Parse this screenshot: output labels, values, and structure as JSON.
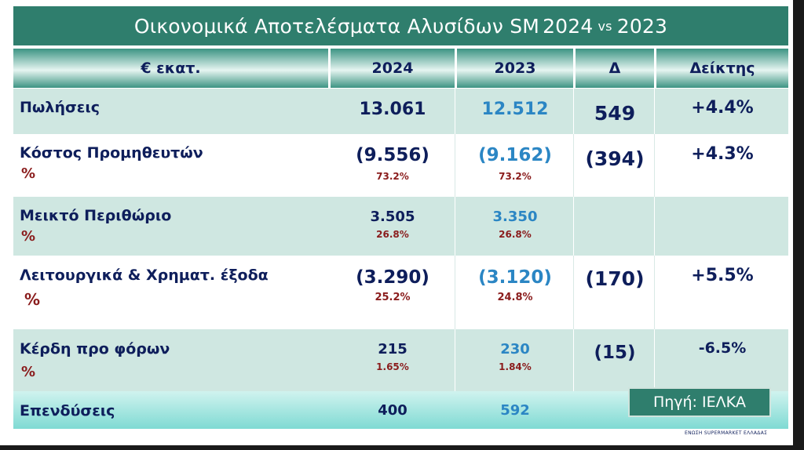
{
  "title": {
    "main": "Οικονομικά Αποτελέσματα Αλυσίδων SM",
    "year_a": "2024",
    "vs": "vs",
    "year_b": "2023"
  },
  "header": {
    "unit": "€ εκατ.",
    "col_2024": "2024",
    "col_2023": "2023",
    "col_delta": "Δ",
    "col_index": "Δείκτης"
  },
  "rows": [
    {
      "label": "Πωλήσεις",
      "pct_sign": "",
      "v2024": "13.061",
      "p2024": "",
      "v2023": "12.512",
      "p2023": "",
      "delta": "549",
      "index": "+4.4%"
    },
    {
      "label": "Κόστος Προμηθευτών",
      "pct_sign": "%",
      "v2024": "(9.556)",
      "p2024": "73.2%",
      "v2023": "(9.162)",
      "p2023": "73.2%",
      "delta": "(394)",
      "index": "+4.3%"
    },
    {
      "label": "Μεικτό Περιθώριο",
      "pct_sign": "%",
      "v2024": "3.505",
      "p2024": "26.8%",
      "v2023": "3.350",
      "p2023": "26.8%",
      "delta": "",
      "index": ""
    },
    {
      "label": "Λειτουργικά & Χρηματ. έξοδα",
      "pct_sign": "%",
      "v2024": "(3.290)",
      "p2024": "25.2%",
      "v2023": "(3.120)",
      "p2023": "24.8%",
      "delta": "(170)",
      "index": "+5.5%"
    },
    {
      "label": "Κέρδη προ φόρων",
      "pct_sign": "%",
      "v2024": "215",
      "p2024": "1.65%",
      "v2023": "230",
      "p2023": "1.84%",
      "delta": "(15)",
      "index": "-6.5%"
    },
    {
      "label": "Επενδύσεις",
      "pct_sign": "",
      "v2024": "400",
      "p2024": "",
      "v2023": "592",
      "p2023": "",
      "delta": "",
      "index": ""
    }
  ],
  "source_label": "Πηγή: ΙΕΛΚΑ",
  "footer_text": "ΕΝΩΣΗ SUPERMARKET ΕΛΛΑΔΑΣ"
}
